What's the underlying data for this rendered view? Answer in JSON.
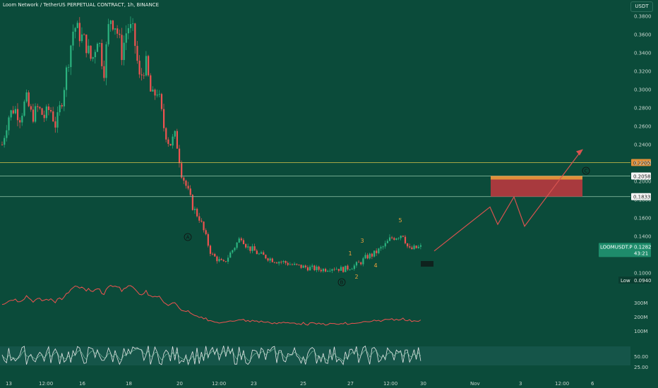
{
  "header": {
    "title": "Loom Network / TetherUS PERPETUAL CONTRACT, 1h, BINANCE",
    "currency": "USDT"
  },
  "colors": {
    "background": "#0b4b3a",
    "up_candle": "#2bb37f",
    "down_candle": "#ef5350",
    "axis_text": "#c9d6cf",
    "level_line": "#d8c44a",
    "arrow": "#d9534f",
    "zone_fill": "#a83a3e",
    "zone_top": "#e0903a",
    "wave_label": "#f0a23a",
    "rsi_line": "#e6e6e6",
    "rsi_band": "#1f5f58"
  },
  "price_axis": {
    "ticks": [
      "0.3800",
      "0.3600",
      "0.3400",
      "0.3200",
      "0.3000",
      "0.2800",
      "0.2600",
      "0.2400",
      "0.2200",
      "0.2000",
      "0.1800",
      "0.1600",
      "0.1400",
      "0.1200",
      "0.1000"
    ],
    "tags": [
      {
        "text": "0.2205",
        "bg": "#e0903a",
        "fg": "#1a1a1a"
      },
      {
        "text": "0.2058",
        "bg": "#f5f5f5",
        "fg": "#1a1a1a"
      },
      {
        "text": "0.1833",
        "bg": "#f5f5f5",
        "fg": "#1a1a1a"
      }
    ],
    "current_label": "LOOMUSDT.P",
    "current_price": "0.1282",
    "countdown": "43:21",
    "low_label": "Low",
    "low_value": "0.0940"
  },
  "volume_axis": {
    "ticks": [
      "300M",
      "200M",
      "100M"
    ]
  },
  "rsi_axis": {
    "ticks": [
      "50.00",
      "25.00"
    ]
  },
  "time_axis": {
    "ticks": [
      "13",
      "12:00",
      "16",
      "18",
      "20",
      "12:00",
      "23",
      "25",
      "27",
      "12:00",
      "30",
      "Nov",
      "3",
      "12:00",
      "6"
    ]
  },
  "wave_labels": {
    "A": "A",
    "B": "B",
    "C": "C",
    "w1": "1",
    "w2": "2",
    "w3": "3",
    "w4": "4",
    "w5": "5"
  },
  "chart_data": {
    "type": "candlestick",
    "title": "Loom Network / TetherUS PERPETUAL CONTRACT, 1h, BINANCE",
    "price_range": [
      0.094,
      0.39
    ],
    "levels": [
      0.2205,
      0.2058,
      0.1833
    ],
    "close_path": [
      0.24,
      0.27,
      0.28,
      0.27,
      0.29,
      0.27,
      0.28,
      0.27,
      0.28,
      0.26,
      0.29,
      0.33,
      0.37,
      0.36,
      0.35,
      0.33,
      0.36,
      0.32,
      0.38,
      0.37,
      0.34,
      0.37,
      0.36,
      0.31,
      0.33,
      0.29,
      0.3,
      0.26,
      0.24,
      0.25,
      0.21,
      0.19,
      0.17,
      0.16,
      0.14,
      0.12,
      0.115,
      0.11,
      0.12,
      0.13,
      0.14,
      0.128,
      0.125,
      0.12,
      0.118,
      0.115,
      0.113,
      0.112,
      0.11,
      0.108,
      0.107,
      0.106,
      0.105,
      0.104,
      0.104,
      0.106,
      0.105,
      0.104,
      0.106,
      0.108,
      0.112,
      0.118,
      0.12,
      0.125,
      0.13,
      0.138,
      0.14,
      0.143,
      0.125,
      0.127,
      0.128
    ]
  }
}
